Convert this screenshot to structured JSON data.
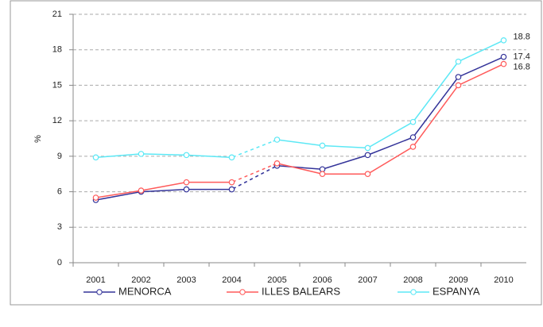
{
  "chart_data": {
    "type": "line",
    "y_label": "%",
    "categories": [
      "2001",
      "2002",
      "2003",
      "2004",
      "2005",
      "2006",
      "2007",
      "2008",
      "2009",
      "2010"
    ],
    "series": [
      {
        "name": "MENORCA",
        "color": "#333399",
        "values": [
          5.3,
          6.0,
          6.2,
          6.2,
          8.2,
          7.9,
          9.1,
          10.6,
          15.7,
          17.4
        ]
      },
      {
        "name": "ILLES BALEARS",
        "color": "#ff5a5a",
        "values": [
          5.5,
          6.1,
          6.8,
          6.8,
          8.4,
          7.5,
          7.5,
          9.8,
          15.0,
          16.8
        ]
      },
      {
        "name": "ESPANYA",
        "color": "#5ce8f5",
        "values": [
          8.9,
          9.2,
          9.1,
          8.9,
          10.4,
          9.9,
          9.7,
          11.9,
          17.0,
          18.8
        ]
      }
    ],
    "ylim": [
      0,
      21
    ],
    "yticks": [
      0,
      3,
      6,
      9,
      12,
      15,
      18,
      21
    ],
    "grid": true
  }
}
